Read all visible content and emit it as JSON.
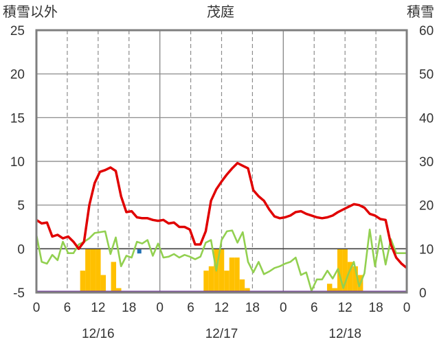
{
  "chart_data": {
    "type": "bar+line",
    "title": "茂庭",
    "y_left_label": "積雪以外",
    "y_right_label": "積雪",
    "y_left_range": [
      -5,
      25
    ],
    "y_right_range": [
      0,
      60
    ],
    "y_left_ticks": [
      "25",
      "20",
      "15",
      "10",
      "5",
      "0",
      "-5"
    ],
    "y_right_ticks": [
      "60",
      "50",
      "40",
      "30",
      "20",
      "10",
      "0"
    ],
    "x_hour_ticks": [
      "0",
      "6",
      "12",
      "18",
      "0",
      "6",
      "12",
      "18",
      "0",
      "6",
      "12",
      "18",
      "0"
    ],
    "x_date_labels": [
      "12/16",
      "12/17",
      "12/18"
    ],
    "grid": true,
    "colors": {
      "precip_bar": "#ffc000",
      "temperature": "#e00000",
      "second_line": "#92d050",
      "snow_depth": "#7030a0",
      "marker": "#1f6fb3",
      "frame": "#7f7f7f"
    },
    "precip_bars": [
      {
        "h": 9,
        "v": 5
      },
      {
        "h": 10,
        "v": 10
      },
      {
        "h": 11,
        "v": 10
      },
      {
        "h": 12,
        "v": 10
      },
      {
        "h": 13,
        "v": 4
      },
      {
        "h": 15,
        "v": 7
      },
      {
        "h": 16,
        "v": 1
      },
      {
        "h": 33,
        "v": 5
      },
      {
        "h": 34,
        "v": 6
      },
      {
        "h": 35,
        "v": 10
      },
      {
        "h": 36,
        "v": 10
      },
      {
        "h": 37,
        "v": 5
      },
      {
        "h": 38,
        "v": 8
      },
      {
        "h": 39,
        "v": 8
      },
      {
        "h": 40,
        "v": 3
      },
      {
        "h": 41,
        "v": 1
      },
      {
        "h": 57,
        "v": 2
      },
      {
        "h": 58,
        "v": 1
      },
      {
        "h": 59,
        "v": 10
      },
      {
        "h": 60,
        "v": 10
      },
      {
        "h": 61,
        "v": 7
      },
      {
        "h": 62,
        "v": 6
      },
      {
        "h": 63,
        "v": 4
      }
    ],
    "temperature": [
      3.3,
      2.9,
      3.0,
      1.4,
      1.6,
      1.2,
      1.4,
      0.8,
      0.0,
      0.8,
      5.0,
      7.5,
      8.8,
      9.0,
      9.3,
      8.9,
      6.0,
      4.2,
      4.3,
      3.6,
      3.5,
      3.5,
      3.3,
      3.2,
      3.3,
      2.9,
      3.0,
      2.5,
      2.5,
      2.2,
      0.5,
      0.5,
      2.0,
      5.5,
      6.8,
      7.7,
      8.5,
      9.2,
      9.8,
      9.5,
      9.2,
      6.7,
      6.0,
      5.5,
      4.5,
      3.7,
      3.5,
      3.6,
      3.8,
      4.2,
      4.3,
      4.0,
      3.8,
      3.6,
      3.5,
      3.6,
      3.8,
      4.2,
      4.5,
      4.8,
      5.1,
      5.0,
      4.7,
      4.0,
      3.8,
      3.4,
      3.3,
      0.5,
      -1.0,
      -1.7,
      -2.2
    ],
    "second_series": [
      1.6,
      -1.5,
      -1.7,
      -0.7,
      -1.3,
      0.8,
      -0.5,
      -0.5,
      0.5,
      0.8,
      1.2,
      1.8,
      1.9,
      2.0,
      -0.6,
      1.3,
      -2.0,
      -0.8,
      -1.0,
      0.8,
      0.6,
      1.0,
      -0.8,
      0.6,
      -1.0,
      -0.9,
      -0.6,
      -1.0,
      -0.7,
      -0.9,
      -1.2,
      -0.9,
      0.7,
      1.0,
      -2.5,
      1.0,
      2.0,
      2.1,
      0.7,
      1.9,
      -1.5,
      -2.7,
      -1.5,
      -2.9,
      -2.6,
      -2.2,
      -2.0,
      -1.7,
      -1.5,
      -1.0,
      -3.0,
      -2.7,
      -4.8,
      -3.5,
      -3.5,
      -2.5,
      -3.4,
      -2.3,
      -4.5,
      -2.8,
      -1.5,
      -4.3,
      -2.8,
      2.2,
      -2.0,
      1.5,
      -1.8,
      1.1,
      -0.5,
      -0.5,
      -0.5
    ],
    "second_series_start_hour": 0,
    "temperature_start_hour": 0,
    "second_series_end_hour_offset": 0,
    "snow_depth": [
      {
        "h": 0,
        "v": 0
      },
      {
        "h": 72,
        "v": 0
      }
    ],
    "marker_point": {
      "h": 20,
      "v": -0.3
    }
  }
}
